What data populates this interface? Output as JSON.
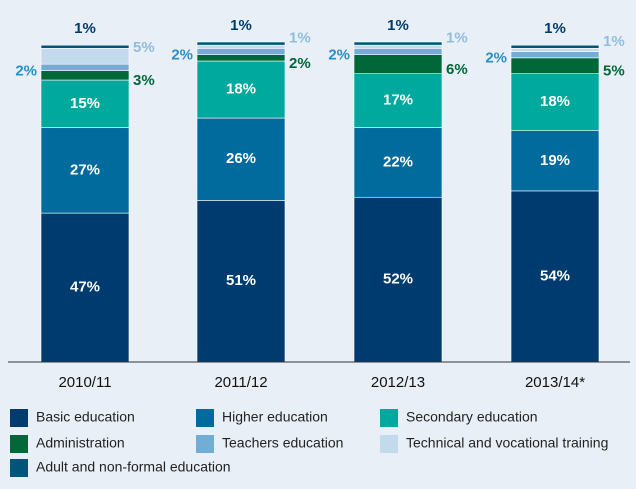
{
  "chart_data": {
    "type": "stacked_bar",
    "categories": [
      "2010/11",
      "2011/12",
      "2012/13",
      "2013/14*"
    ],
    "series": [
      {
        "name": "Basic education",
        "color": "#003b6f",
        "values": [
          47,
          51,
          52,
          54
        ],
        "value_labels": [
          "47%",
          "51%",
          "52%",
          "54%"
        ]
      },
      {
        "name": "Higher education",
        "color": "#006b9c",
        "values": [
          27,
          26,
          22,
          19
        ],
        "value_labels": [
          "27%",
          "26%",
          "22%",
          "19%"
        ]
      },
      {
        "name": "Secondary education",
        "color": "#00a99d",
        "values": [
          15,
          18,
          17,
          18
        ],
        "value_labels": [
          "15%",
          "18%",
          "17%",
          "18%"
        ]
      },
      {
        "name": "Administration",
        "color": "#006838",
        "values": [
          3,
          2,
          6,
          5
        ],
        "value_labels": [
          "3%",
          "2%",
          "6%",
          "5%"
        ]
      },
      {
        "name": "Teachers education",
        "color": "#72add6",
        "values": [
          2,
          2,
          2,
          2
        ],
        "value_labels": [
          "2%",
          "2%",
          "2%",
          "2%"
        ]
      },
      {
        "name": "Technical and vocational training",
        "color": "#c3d9ec",
        "values": [
          5,
          1,
          1,
          1
        ],
        "value_labels": [
          "5%",
          "1%",
          "1%",
          "1%"
        ]
      },
      {
        "name": "Adult and non-formal education",
        "color": "#00557a",
        "values": [
          1,
          1,
          1,
          1
        ],
        "value_labels": [
          "1%",
          "1%",
          "1%",
          "1%"
        ]
      }
    ]
  }
}
